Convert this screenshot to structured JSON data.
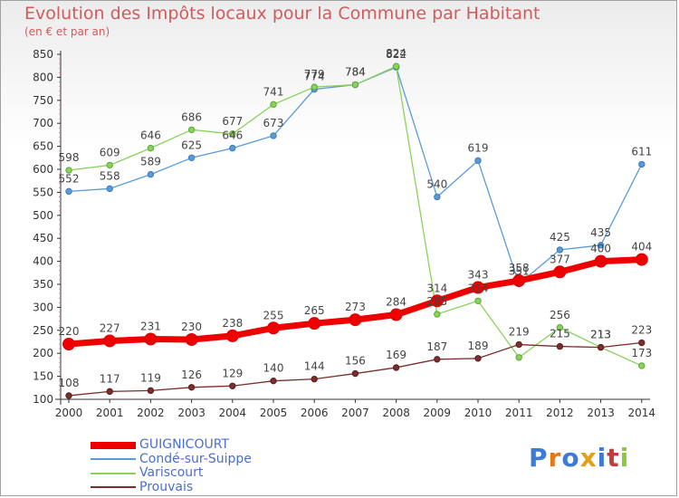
{
  "title": "Evolution des Impôts locaux pour la Commune par Habitant",
  "subtitle": "(en € et par an)",
  "logo_text": "Proxiti",
  "chart_data": {
    "type": "line",
    "title": "Evolution des Impôts locaux pour la Commune par Habitant",
    "subtitle": "(en € et par an)",
    "xlabel": "",
    "ylabel": "",
    "ylim": [
      100,
      850
    ],
    "yticks": [
      "100",
      "150",
      "200",
      "250",
      "300",
      "350",
      "400",
      "450",
      "500",
      "550",
      "600",
      "650",
      "700",
      "750",
      "800",
      "850"
    ],
    "grid": false,
    "legend_position": "bottom-left",
    "categories": [
      "2000",
      "2001",
      "2002",
      "2003",
      "2004",
      "2005",
      "2006",
      "2007",
      "2008",
      "2009",
      "2010",
      "2011",
      "2012",
      "2013",
      "2014"
    ],
    "series": [
      {
        "name": "Condé-sur-Suippe",
        "color": "#5b9bd5",
        "values": [
          552,
          558,
          589,
          625,
          646,
          673,
          774,
          784,
          822,
          540,
          619,
          351,
          425,
          435,
          611
        ]
      },
      {
        "name": "Variscourt",
        "color": "#8bd25a",
        "values": [
          598,
          609,
          646,
          686,
          677,
          741,
          779,
          784,
          824,
          285,
          314,
          191,
          256,
          213,
          173
        ]
      },
      {
        "name": "Prouvais",
        "color": "#7a2e2e",
        "values": [
          108,
          117,
          119,
          126,
          129,
          140,
          144,
          156,
          169,
          187,
          189,
          219,
          215,
          213,
          223
        ]
      },
      {
        "name": "GUIGNICOURT",
        "color": "#ee0000",
        "values": [
          220,
          227,
          231,
          230,
          238,
          255,
          265,
          273,
          284,
          314,
          343,
          358,
          377,
          400,
          404
        ]
      }
    ],
    "data_labels": {
      "Condé-sur-Suippe": [
        "552",
        "558",
        "589",
        "625",
        "646",
        "673",
        "774",
        "784",
        "822",
        "540",
        "619",
        "351",
        "425",
        "435",
        "611"
      ],
      "Variscourt": [
        "598",
        "609",
        "646",
        "686",
        "677",
        "741",
        "779",
        "784",
        "824",
        "285",
        "314",
        "",
        "256",
        "213",
        "173"
      ],
      "Prouvais": [
        "108",
        "117",
        "119",
        "126",
        "129",
        "140",
        "144",
        "156",
        "169",
        "187",
        "189",
        "219",
        "215",
        "213",
        "223"
      ],
      "GUIGNICOURT": [
        "220",
        "227",
        "231",
        "230",
        "238",
        "255",
        "265",
        "273",
        "284",
        "314",
        "343",
        "358",
        "377",
        "400",
        "404"
      ]
    }
  }
}
